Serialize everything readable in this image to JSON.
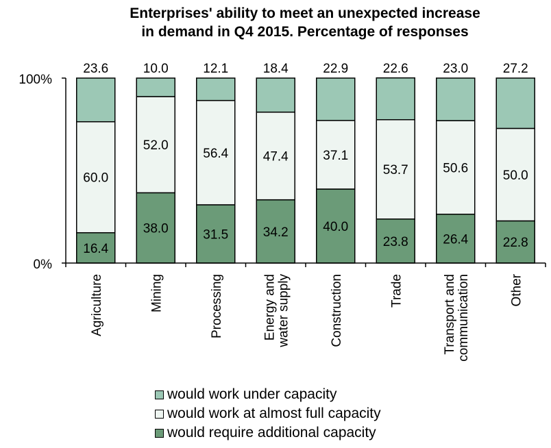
{
  "title_line1": "Enterprises' ability to meet an unexpected increase",
  "title_line2": "in demand in Q4 2015. Percentage of responses",
  "chart_data": {
    "type": "bar",
    "stacked": true,
    "title": "Enterprises' ability to meet an unexpected increase in demand in Q4 2015. Percentage of responses",
    "categories": [
      [
        "Agriculture"
      ],
      [
        "Mining"
      ],
      [
        "Processing"
      ],
      [
        "Energy and",
        "water supply"
      ],
      [
        "Construction"
      ],
      [
        "Trade"
      ],
      [
        "Transport and",
        "communication"
      ],
      [
        "Other"
      ]
    ],
    "series": [
      {
        "name": "would require additional capacity",
        "values": [
          16.4,
          38.0,
          31.5,
          34.2,
          40.0,
          23.8,
          26.4,
          22.8
        ],
        "color": "#6b9b78"
      },
      {
        "name": "would work at almost full capacity",
        "values": [
          60.0,
          52.0,
          56.4,
          47.4,
          37.1,
          53.7,
          50.6,
          50.0
        ],
        "color": "#eef5f1"
      },
      {
        "name": "would work under capacity",
        "values": [
          23.6,
          10.0,
          12.1,
          18.4,
          22.9,
          22.6,
          23.0,
          27.2
        ],
        "color": "#9cc8b5"
      }
    ],
    "yticks": [
      "0%",
      "100%"
    ],
    "ylim": [
      0,
      100
    ],
    "legend_position": "bottom",
    "grid": false
  },
  "legend": [
    {
      "label": "would work under capacity",
      "color": "#9cc8b5"
    },
    {
      "label": "would work at almost full capacity",
      "color": "#eef5f1"
    },
    {
      "label": "would require additional capacity",
      "color": "#6b9b78"
    }
  ]
}
